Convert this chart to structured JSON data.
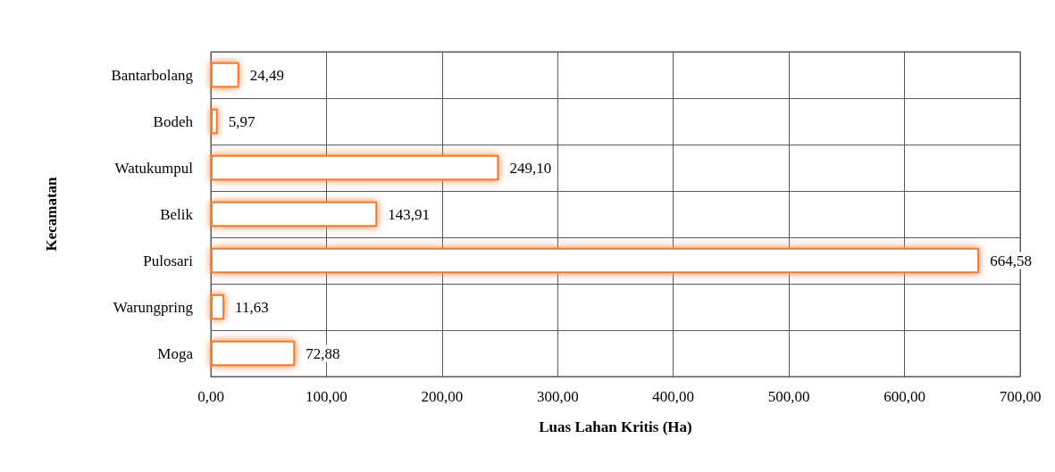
{
  "chart_data": {
    "type": "bar",
    "orientation": "horizontal",
    "xlabel": "Luas Lahan Kritis (Ha)",
    "ylabel": "Kecamatan",
    "categories": [
      "Bantarbolang",
      "Bodeh",
      "Watukumpul",
      "Belik",
      "Pulosari",
      "Warungpring",
      "Moga"
    ],
    "values": [
      24.49,
      5.97,
      249.1,
      143.91,
      664.58,
      11.63,
      72.88
    ],
    "value_labels": [
      "24,49",
      "5,97",
      "249,10",
      "143,91",
      "664,58",
      "11,63",
      "72,88"
    ],
    "color": "#ed7d31",
    "xlim": [
      0,
      700
    ],
    "xticks": [
      {
        "value": 0,
        "label": "0,00"
      },
      {
        "value": 100,
        "label": "100,00"
      },
      {
        "value": 200,
        "label": "200,00"
      },
      {
        "value": 300,
        "label": "300,00"
      },
      {
        "value": 400,
        "label": "400,00"
      },
      {
        "value": 500,
        "label": "500,00"
      },
      {
        "value": 600,
        "label": "600,00"
      },
      {
        "value": 700,
        "label": "700,00"
      }
    ],
    "grid": true
  }
}
